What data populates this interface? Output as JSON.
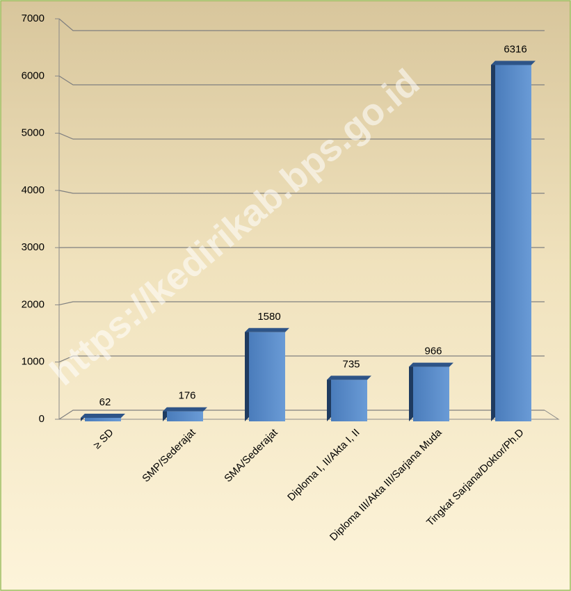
{
  "chart_data": {
    "type": "bar",
    "categories": [
      "≥ SD",
      "SMP/Sederajat",
      "SMA/Sederajat",
      "Diploma I, II/Akta I, II",
      "Diploma III/Akta III/Sarjana Muda",
      "Tingkat Sarjana/Doktor/Ph.D"
    ],
    "values": [
      62,
      176,
      1580,
      735,
      966,
      6316
    ],
    "color": "#4f81bd",
    "ylim": [
      0,
      7000
    ],
    "yticks": [
      0,
      1000,
      2000,
      3000,
      4000,
      5000,
      6000,
      7000
    ],
    "grid": true,
    "watermark": "https://kedirikab.bps.go.id"
  }
}
